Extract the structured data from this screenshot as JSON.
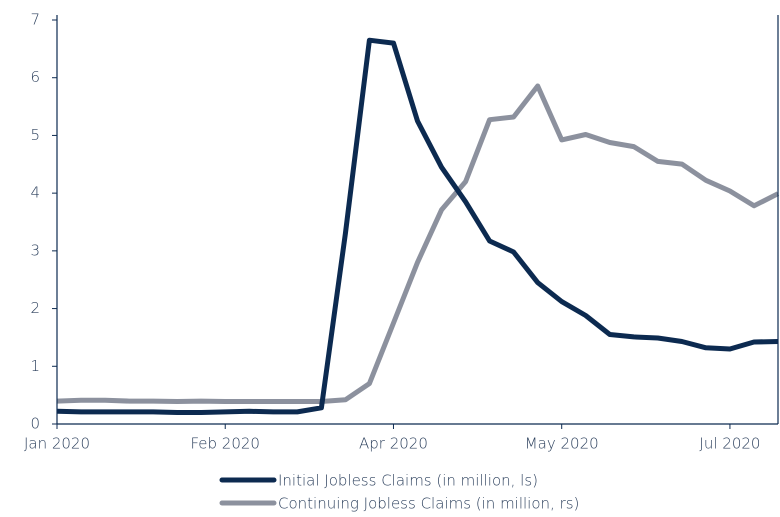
{
  "chart_data": {
    "type": "line",
    "categories": [
      "Jan 2020",
      null,
      null,
      null,
      null,
      null,
      null,
      "Feb 2020",
      null,
      null,
      null,
      null,
      null,
      null,
      "Apr 2020",
      null,
      null,
      null,
      null,
      null,
      null,
      "May 2020",
      null,
      null,
      null,
      null,
      null,
      null,
      "Jul 2020",
      null,
      null
    ],
    "series": [
      {
        "name": "Initial Jobless Claims (in million, ls)",
        "color": "#0c2a50",
        "values": [
          0.22,
          0.21,
          0.21,
          0.21,
          0.21,
          0.2,
          0.2,
          0.21,
          0.22,
          0.21,
          0.21,
          0.28,
          3.3,
          6.65,
          6.6,
          5.25,
          4.45,
          3.85,
          3.17,
          2.98,
          2.45,
          2.12,
          1.88,
          1.55,
          1.51,
          1.49,
          1.43,
          1.32,
          1.3,
          1.42,
          1.43
        ]
      },
      {
        "name": "Continuing Jobless Claims (in million, rs)",
        "color": "#8c919e",
        "axis": "y2",
        "values": [
          1.7,
          1.76,
          1.76,
          1.7,
          1.7,
          1.67,
          1.7,
          1.67,
          1.67,
          1.67,
          1.67,
          1.67,
          1.8,
          3.0,
          7.5,
          12.0,
          15.9,
          18.0,
          22.6,
          22.8,
          25.1,
          21.1,
          21.5,
          20.9,
          20.6,
          19.5,
          19.3,
          18.1,
          17.3,
          16.2,
          17.1
        ]
      }
    ],
    "ylim": [
      0,
      7
    ],
    "yticks": [
      0,
      1,
      2,
      3,
      4,
      5,
      6,
      7
    ],
    "y2lim": [
      0,
      30
    ],
    "legend": "bottom"
  }
}
